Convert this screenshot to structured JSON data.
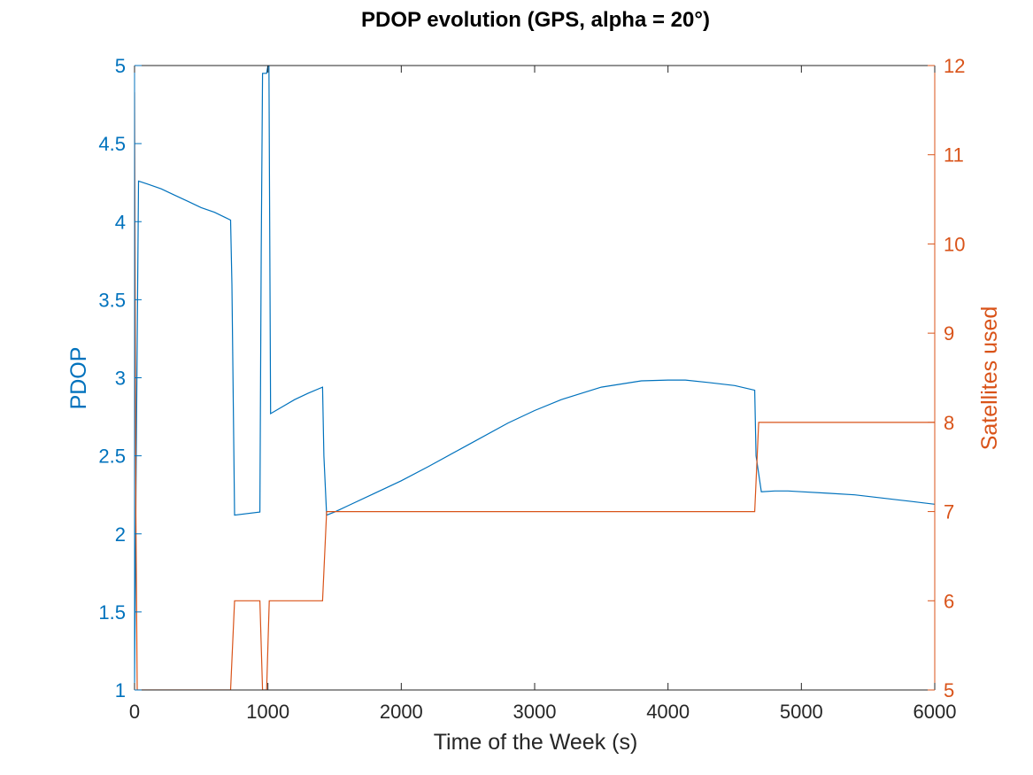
{
  "chart_data": {
    "type": "line",
    "title": "PDOP evolution (GPS, alpha = 20°)",
    "xlabel": "Time of the Week (s)",
    "ylabel_left": "PDOP",
    "ylabel_right": "Satellites used",
    "xlim": [
      0,
      6000
    ],
    "ylim_left": [
      1,
      5
    ],
    "ylim_right": [
      5,
      12
    ],
    "x_ticks": [
      0,
      1000,
      2000,
      3000,
      4000,
      5000,
      6000
    ],
    "y_left_ticks": [
      1,
      1.5,
      2,
      2.5,
      3,
      3.5,
      4,
      4.5,
      5
    ],
    "y_right_ticks": [
      5,
      6,
      7,
      8,
      9,
      10,
      11,
      12
    ],
    "grid": false,
    "colors": {
      "left": "#0072BD",
      "right": "#D95319",
      "axis": "#262626"
    },
    "series": [
      {
        "axis": "left",
        "x": [
          0,
          10,
          30,
          100,
          200,
          300,
          400,
          500,
          600,
          720,
          730,
          750,
          940,
          950,
          960,
          990,
          1000,
          1005,
          1020,
          1100,
          1200,
          1300,
          1410,
          1420,
          1440,
          1500,
          1600,
          1800,
          2000,
          2200,
          2500,
          2800,
          3000,
          3200,
          3500,
          3800,
          4000,
          4130,
          4300,
          4500,
          4650,
          4660,
          4700,
          4800,
          4900,
          5000,
          5200,
          5400,
          5600,
          5800,
          6000
        ],
        "y": [
          1.05,
          2.2,
          4.26,
          4.24,
          4.21,
          4.17,
          4.13,
          4.09,
          4.06,
          4.01,
          3.6,
          2.12,
          2.14,
          3.8,
          4.95,
          4.95,
          5.0,
          5.5,
          2.77,
          2.81,
          2.86,
          2.9,
          2.94,
          2.5,
          2.12,
          2.14,
          2.18,
          2.26,
          2.34,
          2.43,
          2.57,
          2.71,
          2.79,
          2.86,
          2.94,
          2.98,
          2.985,
          2.985,
          2.97,
          2.95,
          2.92,
          2.5,
          2.27,
          2.275,
          2.275,
          2.27,
          2.26,
          2.25,
          2.23,
          2.21,
          2.19
        ]
      },
      {
        "axis": "right",
        "x": [
          0,
          10,
          20,
          30,
          720,
          750,
          940,
          960,
          990,
          1000,
          1010,
          1020,
          1410,
          1440,
          4650,
          4680,
          6000
        ],
        "y": [
          11.7,
          7.0,
          5.0,
          5.0,
          5.0,
          6.0,
          6.0,
          5.0,
          5.0,
          5.5,
          6.0,
          6.0,
          6.0,
          7.0,
          7.0,
          8.0,
          8.0
        ]
      }
    ]
  }
}
